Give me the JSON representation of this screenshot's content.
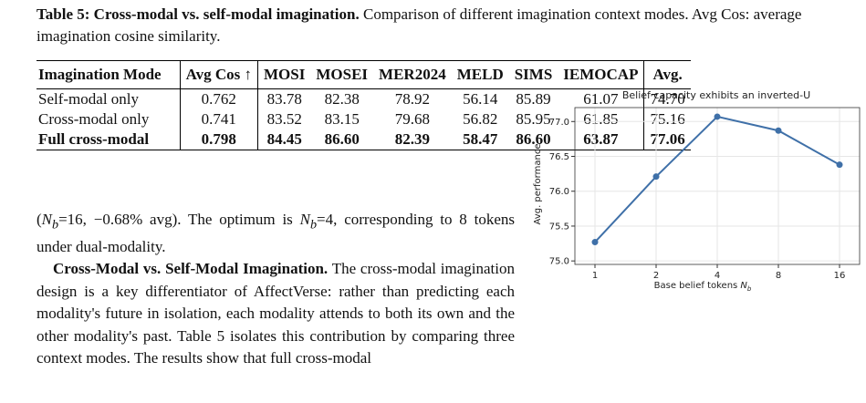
{
  "caption": {
    "label": "Table 5:",
    "title": "Cross-modal vs. self-modal imagination.",
    "text": " Comparison of different imagination context modes. Avg Cos: average imagination cosine similarity."
  },
  "table": {
    "header": [
      "Imagination Mode",
      "Avg Cos ↑",
      "MOSI",
      "MOSEI",
      "MER2024",
      "MELD",
      "SIMS",
      "IEMOCAP",
      "Avg."
    ],
    "rows": [
      [
        "Self-modal only",
        "0.762",
        "83.78",
        "82.38",
        "78.92",
        "56.14",
        "85.89",
        "61.07",
        "74.70"
      ],
      [
        "Cross-modal only",
        "0.741",
        "83.52",
        "83.15",
        "79.68",
        "56.82",
        "85.95",
        "61.85",
        "75.16"
      ],
      [
        "Full cross-modal",
        "0.798",
        "84.45",
        "86.60",
        "82.39",
        "58.47",
        "86.60",
        "63.87",
        "77.06"
      ]
    ]
  },
  "body": {
    "p1": [
      "(",
      "N",
      "b",
      "=16, −0.68% avg). The optimum is ",
      "N",
      "b",
      "=4, corresponding to 8 tokens under dual-modality."
    ],
    "heading": "Cross-Modal vs. Self-Modal Imagination.",
    "p2": "The cross-modal imagination design is a key differentiator of AffectVerse: rather than predicting each modality's future in isolation, each modality attends to both its own and the other modality's past. Table 5 isolates this contribution by comparing three context modes. The results show that full cross-modal"
  },
  "chart_data": {
    "type": "line",
    "title": "Belief capacity exhibits an inverted-U",
    "xlabel": "Base belief tokens ",
    "xlabel_var": "N",
    "xlabel_sub": "b",
    "ylabel": "Avg. performance",
    "categories": [
      "1",
      "2",
      "4",
      "8",
      "16"
    ],
    "series": [
      {
        "name": "Avg. performance",
        "color": "#3f70a8",
        "values": [
          75.27,
          76.21,
          77.07,
          76.87,
          76.38
        ]
      }
    ],
    "ylim": [
      74.95,
      77.2
    ],
    "yticks": [
      {
        "value": 75,
        "label": "75.0"
      },
      {
        "value": 75.5,
        "label": "75.5"
      },
      {
        "value": 76,
        "label": "76.0"
      },
      {
        "value": 76.5,
        "label": "76.5"
      },
      {
        "value": 77,
        "label": "77.0"
      }
    ],
    "grid": true
  }
}
